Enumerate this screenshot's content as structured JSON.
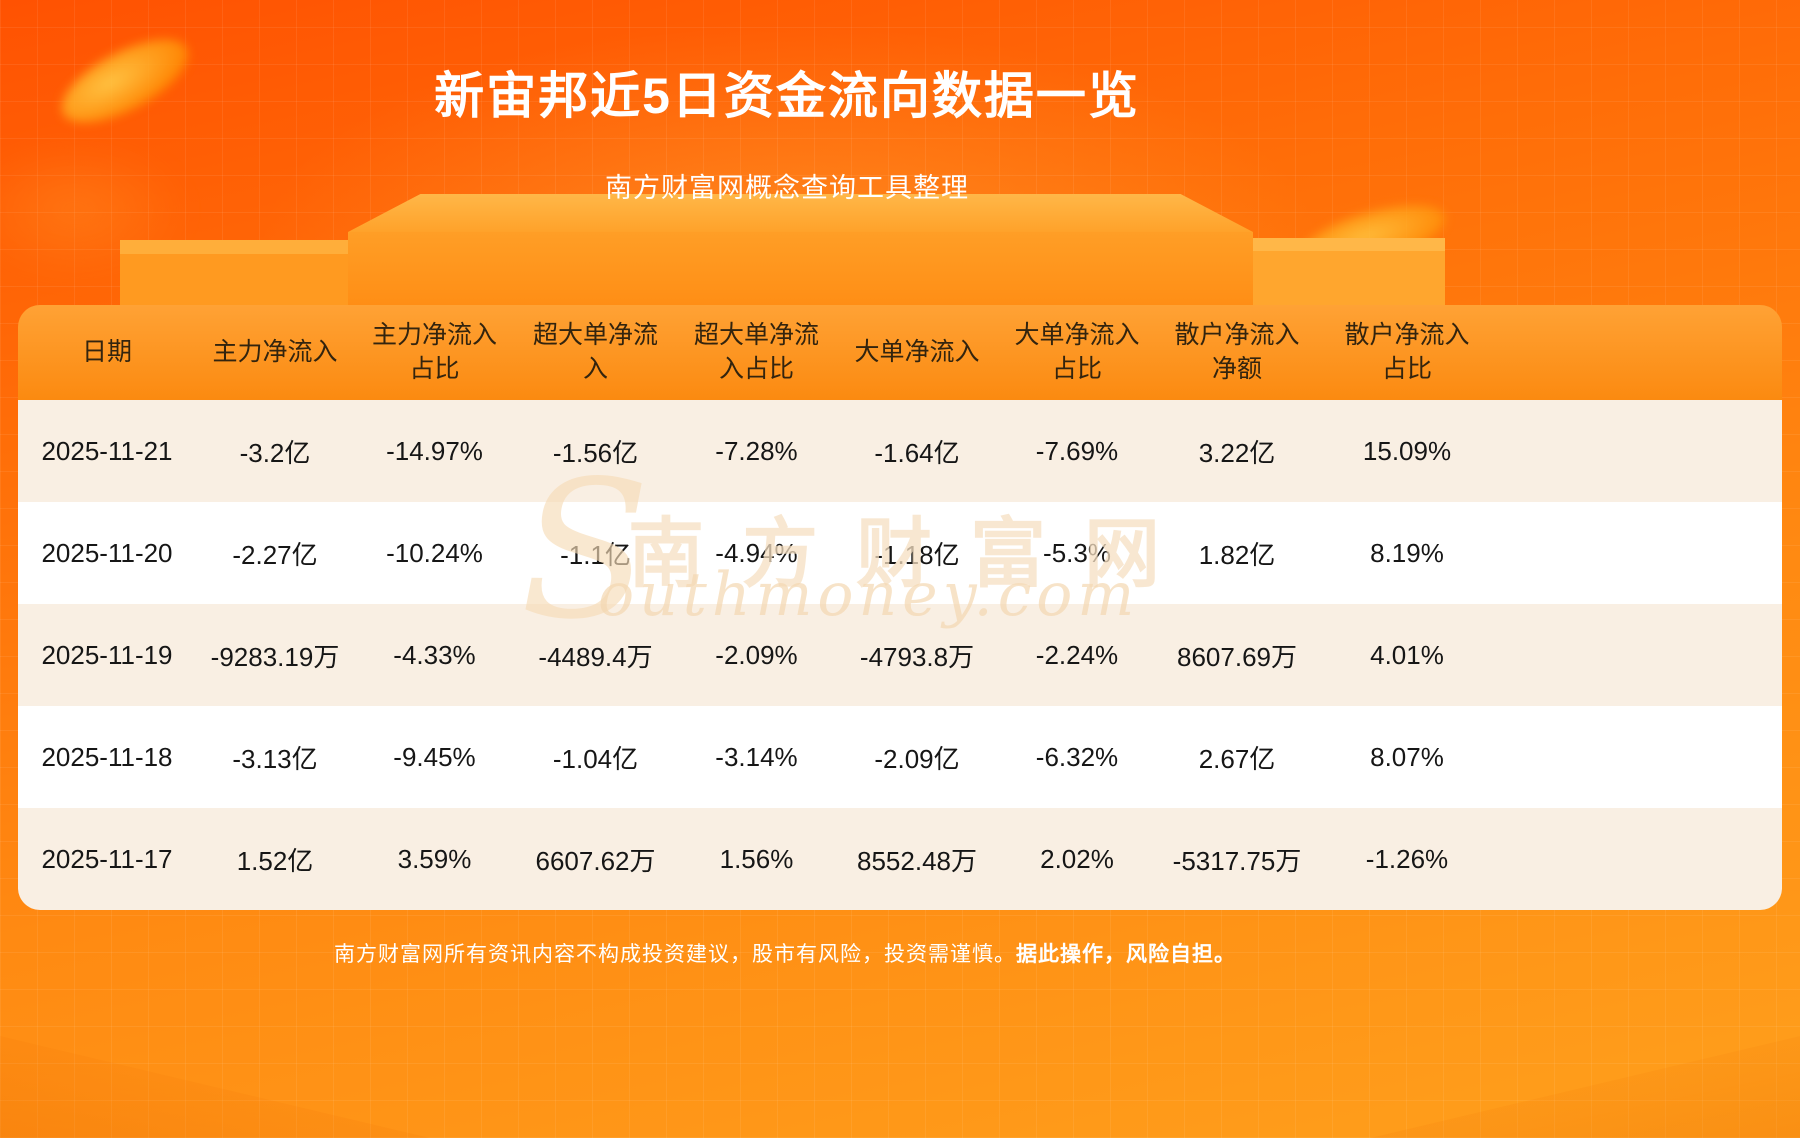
{
  "page": {
    "title": "新宙邦近5日资金流向数据一览",
    "subtitle": "南方财富网概念查询工具整理",
    "footer_main": "南方财富网所有资讯内容不构成投资建议，股市有风险，投资需谨慎。",
    "footer_bold": "据此操作，风险自担。",
    "watermark": {
      "initial": "S",
      "cn": "南方财富网",
      "en": "outhmoney.com"
    }
  },
  "colors": {
    "background_top": "#ff5202",
    "background_bottom": "#ffa01c",
    "header_bg": "#fb8a10",
    "row_cream": "#f9efe3",
    "row_white": "#ffffff",
    "title_text": "#ffffff",
    "cell_text": "#161616"
  },
  "chart_data": {
    "type": "table",
    "title": "新宙邦近5日资金流向数据一览",
    "subtitle": "南方财富网概念查询工具整理",
    "headers": [
      "日期",
      "主力净流入",
      "主力净流入\n占比",
      "超大单净流\n入",
      "超大单净流\n入占比",
      "大单净流入",
      "大单净流入\n占比",
      "散户净流入\n净额",
      "散户净流入\n占比"
    ],
    "rows": [
      [
        "2025-11-21",
        "-3.2亿",
        "-14.97%",
        "-1.56亿",
        "-7.28%",
        "-1.64亿",
        "-7.69%",
        "3.22亿",
        "15.09%"
      ],
      [
        "2025-11-20",
        "-2.27亿",
        "-10.24%",
        "-1.1亿",
        "-4.94%",
        "-1.18亿",
        "-5.3%",
        "1.82亿",
        "8.19%"
      ],
      [
        "2025-11-19",
        "-9283.19万",
        "-4.33%",
        "-4489.4万",
        "-2.09%",
        "-4793.8万",
        "-2.24%",
        "8607.69万",
        "4.01%"
      ],
      [
        "2025-11-18",
        "-3.13亿",
        "-9.45%",
        "-1.04亿",
        "-3.14%",
        "-2.09亿",
        "-6.32%",
        "2.67亿",
        "8.07%"
      ],
      [
        "2025-11-17",
        "1.52亿",
        "3.59%",
        "6607.62万",
        "1.56%",
        "8552.48万",
        "2.02%",
        "-5317.75万",
        "-1.26%"
      ]
    ]
  }
}
